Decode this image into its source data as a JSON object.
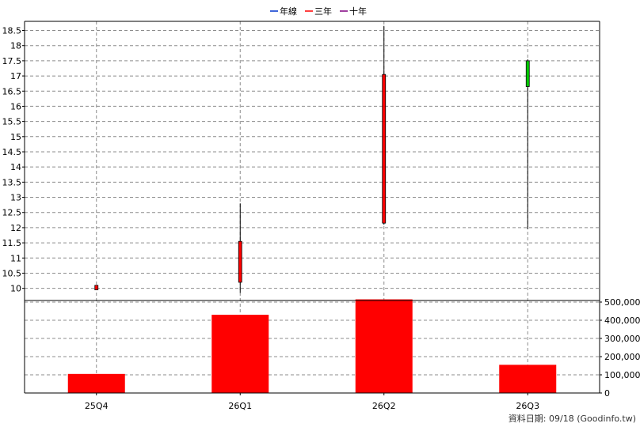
{
  "legend": [
    {
      "label": "年線",
      "color": "#0033cc"
    },
    {
      "label": "三年",
      "color": "#ff0000"
    },
    {
      "label": "十年",
      "color": "#800080"
    }
  ],
  "footer": {
    "note": "資料日期: 09/18  (Goodinfo.tw)"
  },
  "chart_data": {
    "type": "candlestick_with_volume_bars",
    "title": "",
    "xlabel": "",
    "ylabel": "",
    "categories": [
      "25Q4",
      "26Q1",
      "26Q2",
      "26Q3"
    ],
    "price": {
      "ylim": [
        9.6,
        18.8
      ],
      "ticks": [
        10,
        10.5,
        11,
        11.5,
        12,
        12.5,
        13,
        13.5,
        14,
        14.5,
        15,
        15.5,
        16,
        16.5,
        17,
        17.5,
        18,
        18.5
      ],
      "tick_labels": [
        "10",
        "10.5",
        "11",
        "11.5",
        "12",
        "12.5",
        "13",
        "13.5",
        "14",
        "14.5",
        "15",
        "15.5",
        "16",
        "16.5",
        "17",
        "17.5",
        "18",
        "18.5"
      ],
      "candles": [
        {
          "open": 9.95,
          "high": 10.1,
          "low": 9.95,
          "close": 10.1,
          "color": "#ff0000"
        },
        {
          "open": 10.2,
          "high": 12.8,
          "low": 9.85,
          "close": 11.55,
          "color": "#ff0000"
        },
        {
          "open": 12.15,
          "high": 18.65,
          "low": 12.1,
          "close": 17.05,
          "color": "#ff0000"
        },
        {
          "open": 17.5,
          "high": 17.55,
          "low": 11.95,
          "close": 16.65,
          "color": "#00cc00"
        }
      ]
    },
    "volume": {
      "ylim": [
        0,
        500000
      ],
      "ticks": [
        0,
        100000,
        200000,
        300000,
        400000,
        500000
      ],
      "tick_labels": [
        "0",
        "100,000",
        "200,000",
        "300,000",
        "400,000",
        "500,000"
      ],
      "values": [
        105000,
        430000,
        515000,
        155000
      ],
      "color": "#ff0000"
    }
  }
}
